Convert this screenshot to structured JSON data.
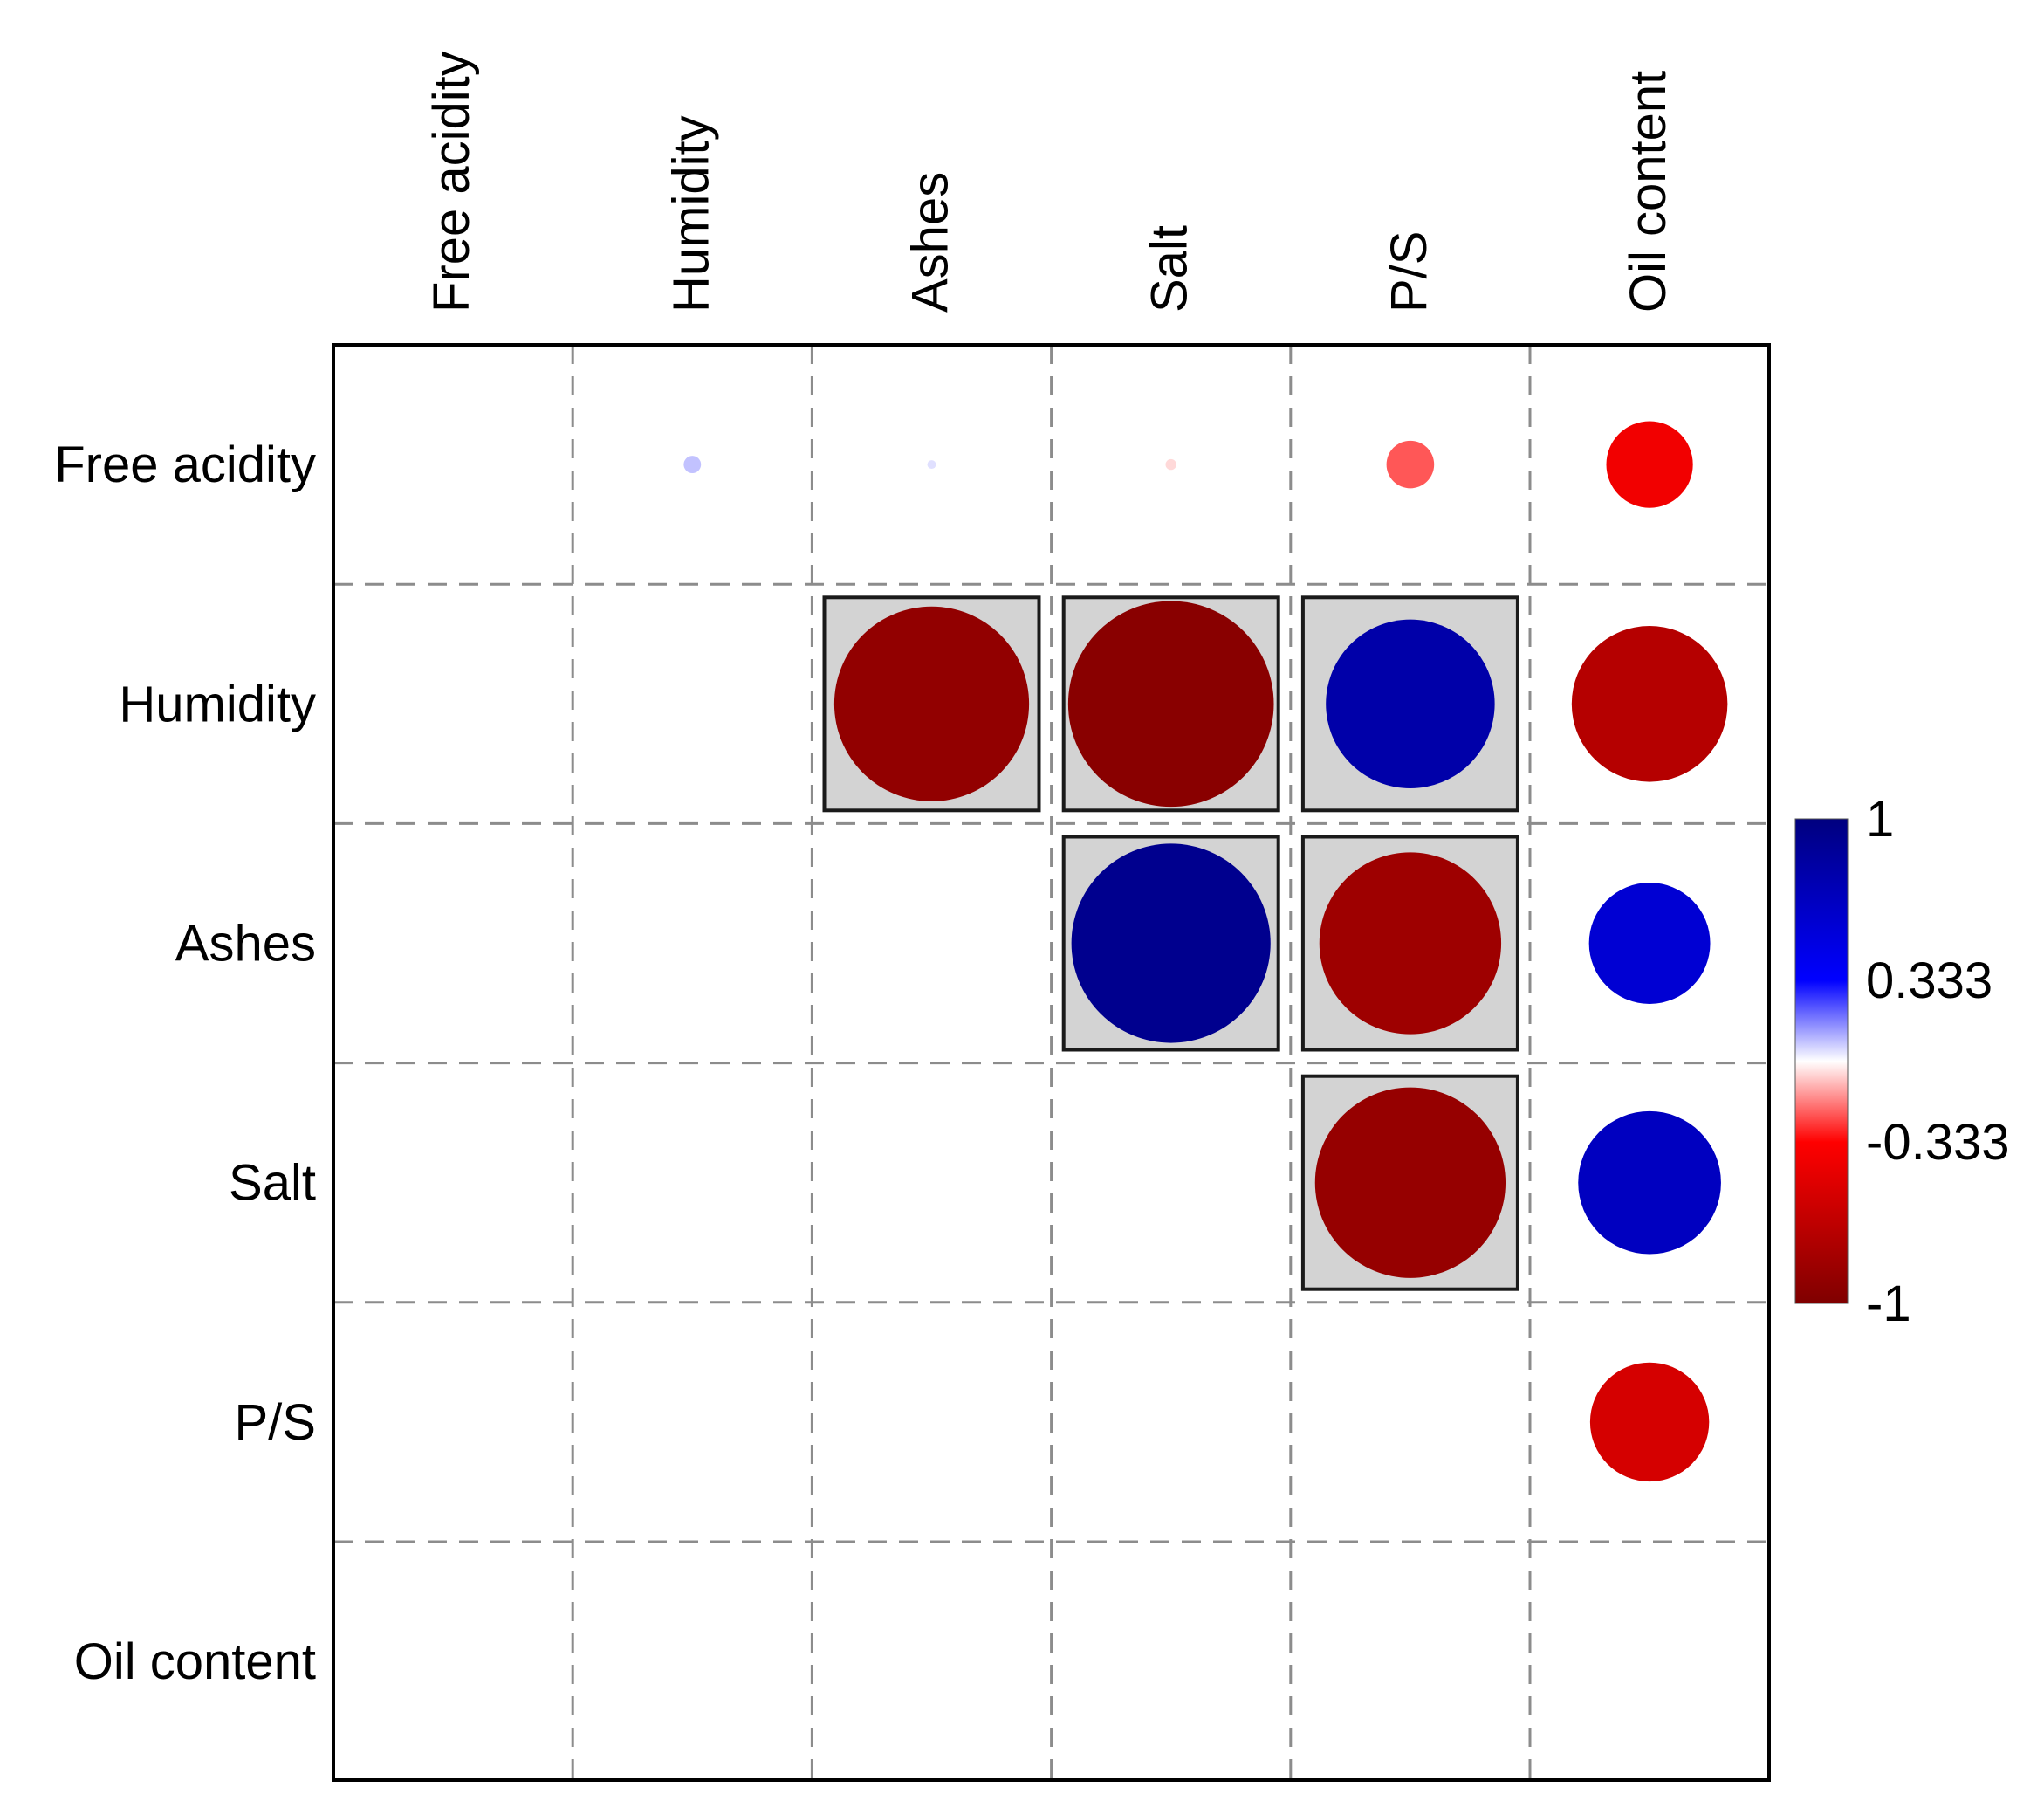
{
  "chart_data": {
    "type": "heatmap",
    "subtype": "correlation-matrix-circles",
    "variables": [
      "Free acidity",
      "Humidity",
      "Ashes",
      "Salt",
      "P/S",
      "Oil content"
    ],
    "row_labels": [
      "Free acidity",
      "Humidity",
      "Ashes",
      "Salt",
      "P/S",
      "Oil content"
    ],
    "col_labels": [
      "Free acidity",
      "Humidity",
      "Ashes",
      "Salt",
      "P/S",
      "Oil content"
    ],
    "cells": [
      {
        "row": "Free acidity",
        "col": "Humidity",
        "value": 0.08,
        "significant": false
      },
      {
        "row": "Free acidity",
        "col": "Ashes",
        "value": 0.04,
        "significant": false
      },
      {
        "row": "Free acidity",
        "col": "Salt",
        "value": -0.05,
        "significant": false
      },
      {
        "row": "Free acidity",
        "col": "P/S",
        "value": -0.22,
        "significant": false
      },
      {
        "row": "Free acidity",
        "col": "Oil content",
        "value": -0.4,
        "significant": false
      },
      {
        "row": "Humidity",
        "col": "Ashes",
        "value": -0.9,
        "significant": true
      },
      {
        "row": "Humidity",
        "col": "Salt",
        "value": -0.95,
        "significant": true
      },
      {
        "row": "Humidity",
        "col": "P/S",
        "value": 0.78,
        "significant": true
      },
      {
        "row": "Humidity",
        "col": "Oil content",
        "value": -0.72,
        "significant": false
      },
      {
        "row": "Ashes",
        "col": "Salt",
        "value": 0.92,
        "significant": true
      },
      {
        "row": "Ashes",
        "col": "P/S",
        "value": -0.84,
        "significant": true
      },
      {
        "row": "Ashes",
        "col": "Oil content",
        "value": 0.56,
        "significant": false
      },
      {
        "row": "Salt",
        "col": "P/S",
        "value": -0.88,
        "significant": true
      },
      {
        "row": "Salt",
        "col": "Oil content",
        "value": 0.66,
        "significant": false
      },
      {
        "row": "P/S",
        "col": "Oil content",
        "value": -0.55,
        "significant": false
      }
    ],
    "colorbar": {
      "range": [
        -1,
        1
      ],
      "tick_labels": [
        "1",
        "0.333",
        "-0.333",
        "-1"
      ],
      "tick_values": [
        1,
        0.333,
        -0.333,
        -1
      ]
    },
    "colors": {
      "positive_strong": "#00007f",
      "positive_mid": "#0000ff",
      "neutral": "#ffffff",
      "negative_mid": "#ff0000",
      "negative_strong": "#7f0000",
      "significant_box": "#d3d3d3",
      "grid": "#8c8c8c"
    }
  }
}
